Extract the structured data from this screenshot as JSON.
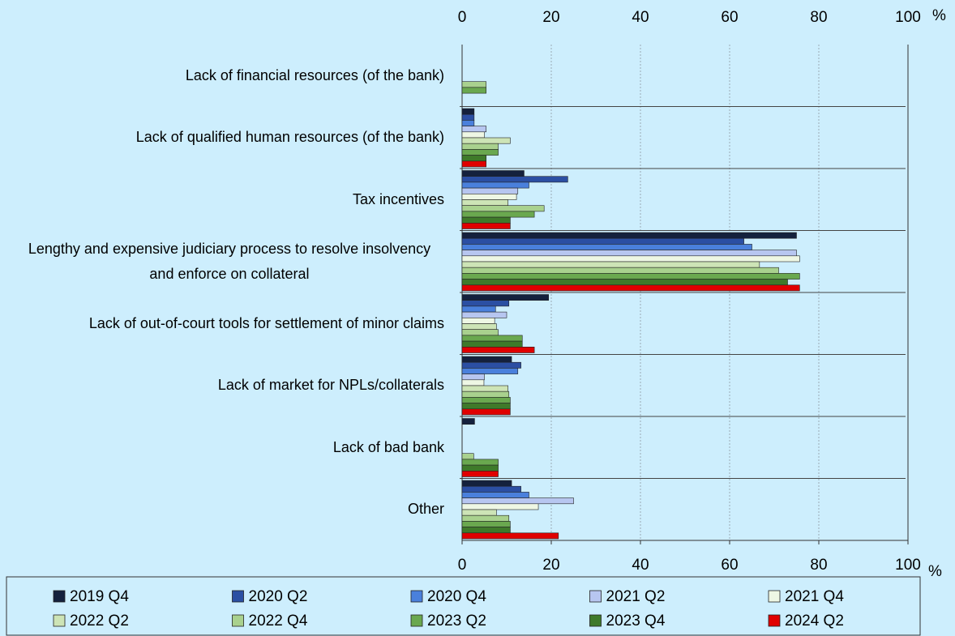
{
  "chart_data": {
    "type": "bar",
    "orientation": "horizontal",
    "categories": [
      "Lack of financial resources (of the bank)",
      "Lack of qualified human resources (of the bank)",
      "Tax incentives",
      "Lengthy and expensive judiciary process to resolve insolvency and enforce on collateral",
      "Lack of out-of-court tools for settlement of minor claims",
      "Lack of market for NPLs/collaterals",
      "Lack of bad bank",
      "Other"
    ],
    "series": [
      {
        "name": "2019 Q4",
        "color": "#14213d",
        "values": [
          0,
          2.7,
          13.9,
          75,
          19.4,
          11.1,
          2.8,
          11.1
        ]
      },
      {
        "name": "2020 Q2",
        "color": "#2b4fa3",
        "values": [
          0,
          2.7,
          23.7,
          63.2,
          10.5,
          13.2,
          0,
          13.2
        ]
      },
      {
        "name": "2020 Q4",
        "color": "#4a80dc",
        "values": [
          0,
          2.7,
          15,
          65,
          7.5,
          12.5,
          0,
          15
        ]
      },
      {
        "name": "2021 Q2",
        "color": "#b7c6f0",
        "values": [
          0,
          5.4,
          12.5,
          75,
          10,
          5,
          0,
          25
        ]
      },
      {
        "name": "2021 Q4",
        "color": "#eef7e4",
        "values": [
          0,
          5,
          12.2,
          75.7,
          7.3,
          4.9,
          0,
          17.1
        ]
      },
      {
        "name": "2022 Q2",
        "color": "#cde4b6",
        "values": [
          0,
          10.8,
          10.3,
          66.7,
          7.7,
          10.3,
          0,
          7.7
        ]
      },
      {
        "name": "2022 Q4",
        "color": "#a9d18e",
        "values": [
          5.4,
          8.1,
          18.4,
          71,
          8.1,
          10.5,
          2.6,
          10.5
        ]
      },
      {
        "name": "2023 Q2",
        "color": "#6aa84f",
        "values": [
          5.4,
          8.1,
          16.2,
          75.7,
          13.5,
          10.8,
          8.1,
          10.8
        ]
      },
      {
        "name": "2023 Q4",
        "color": "#3f7a2a",
        "values": [
          0,
          5.4,
          10.8,
          73,
          13.5,
          10.8,
          8.1,
          10.8
        ]
      },
      {
        "name": "2024 Q2",
        "color": "#e00000",
        "values": [
          0,
          5.4,
          10.8,
          75.7,
          16.2,
          10.8,
          8.1,
          21.6
        ]
      }
    ],
    "xlim": [
      0,
      100
    ],
    "xticks": [
      0,
      20,
      40,
      60,
      80,
      100
    ],
    "x_unit": "%",
    "grid": true,
    "legend": "bottom"
  }
}
